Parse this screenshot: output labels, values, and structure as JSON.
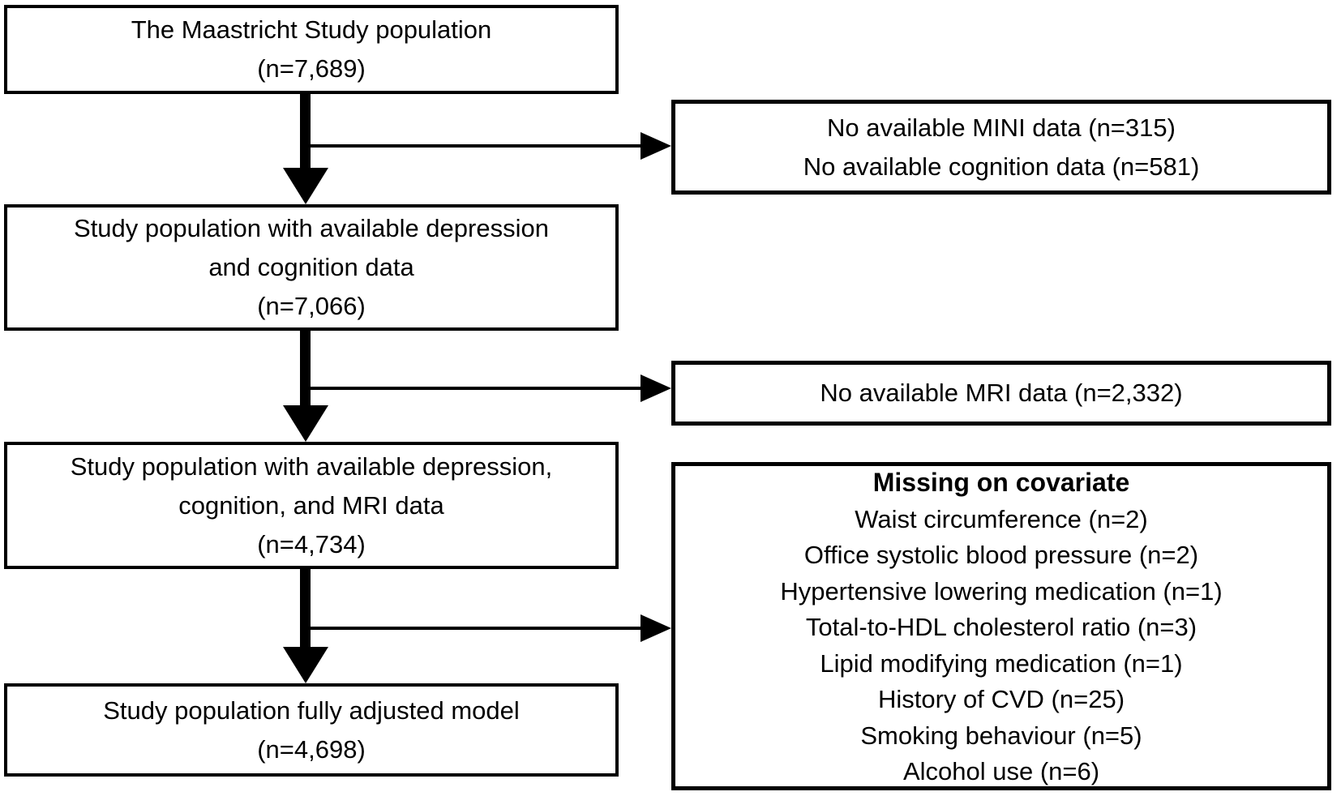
{
  "diagram": {
    "type": "study-flowchart",
    "colors": {
      "background": "#ffffff",
      "box_fill": "#ffffff",
      "box_border": "#000000",
      "text": "#000000",
      "arrow": "#000000"
    },
    "left_boxes": [
      {
        "name": "maastricht-study-population",
        "lines": [
          "The Maastricht Study population",
          "(n=7,689)"
        ]
      },
      {
        "name": "population-depression-cognition",
        "lines": [
          "Study population with available depression",
          "and cognition data",
          "(n=7,066)"
        ]
      },
      {
        "name": "population-depression-cognition-mri",
        "lines": [
          "Study population with available depression,",
          "cognition, and MRI data",
          "(n=4,734)"
        ]
      },
      {
        "name": "population-fully-adjusted-model",
        "lines": [
          "Study population fully adjusted model",
          "(n=4,698)"
        ]
      }
    ],
    "right_boxes": [
      {
        "name": "excluded-mini-cognition",
        "lines": [
          "No available MINI data (n=315)",
          "No available cognition data (n=581)"
        ]
      },
      {
        "name": "excluded-mri",
        "lines": [
          "No available MRI data (n=2,332)"
        ]
      },
      {
        "name": "missing-covariates",
        "title": "Missing on covariate",
        "lines": [
          "Waist circumference (n=2)",
          "Office systolic blood pressure (n=2)",
          "Hypertensive lowering medication (n=1)",
          "Total-to-HDL cholesterol ratio (n=3)",
          "Lipid modifying medication (n=1)",
          "History of CVD (n=25)",
          "Smoking behaviour (n=5)",
          "Alcohol use (n=6)"
        ]
      }
    ]
  }
}
